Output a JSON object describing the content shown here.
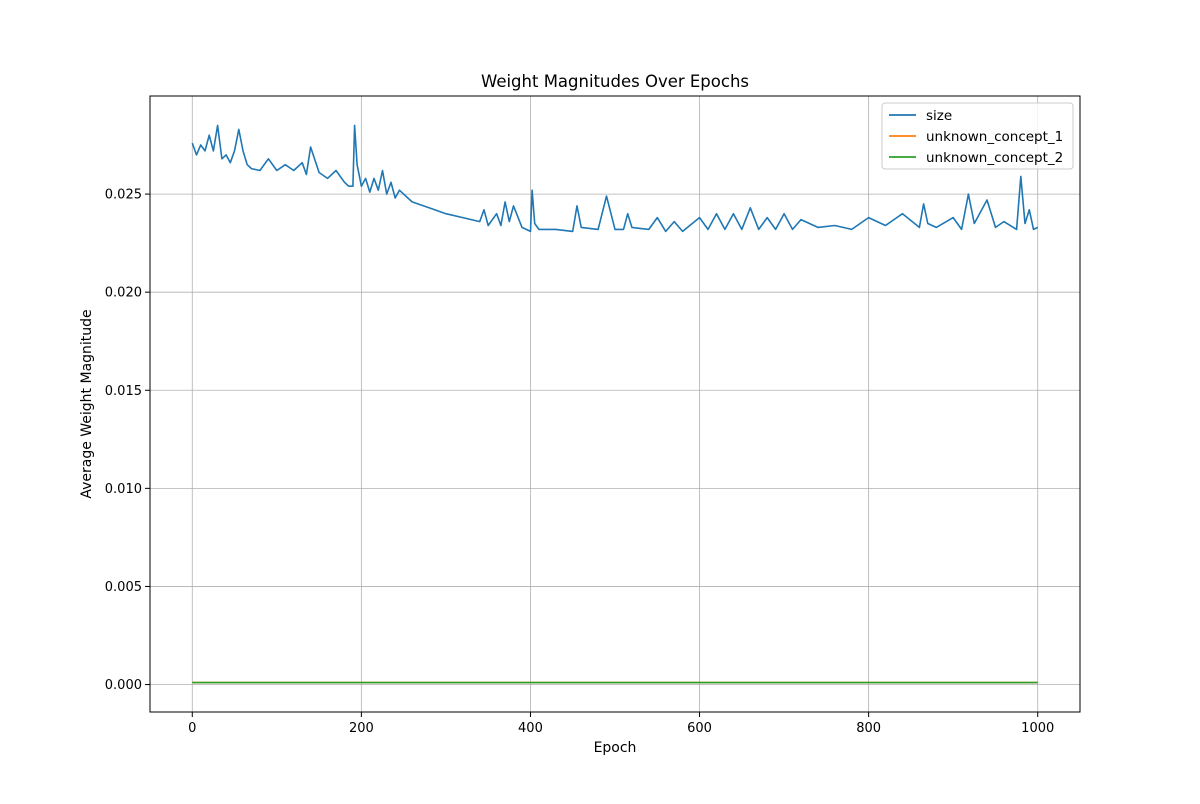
{
  "chart_data": {
    "type": "line",
    "title": "Weight Magnitudes Over Epochs",
    "xlabel": "Epoch",
    "ylabel": "Average Weight Magnitude",
    "xlim": [
      -50,
      1050
    ],
    "ylim": [
      -0.0014,
      0.03
    ],
    "x_ticks": [
      0,
      200,
      400,
      600,
      800,
      1000
    ],
    "x_tick_labels": [
      "0",
      "200",
      "400",
      "600",
      "800",
      "1000"
    ],
    "y_ticks": [
      0.0,
      0.005,
      0.01,
      0.015,
      0.02,
      0.025
    ],
    "y_tick_labels": [
      "0.000",
      "0.005",
      "0.010",
      "0.015",
      "0.020",
      "0.025"
    ],
    "grid": true,
    "legend_position": "top-right",
    "series": [
      {
        "name": "size",
        "color": "#1f77b4",
        "x": [
          0,
          5,
          10,
          15,
          20,
          25,
          30,
          35,
          40,
          45,
          50,
          55,
          60,
          65,
          70,
          80,
          90,
          100,
          110,
          120,
          130,
          135,
          140,
          150,
          160,
          170,
          180,
          185,
          190,
          192,
          195,
          200,
          205,
          210,
          215,
          220,
          225,
          230,
          235,
          240,
          245,
          260,
          280,
          300,
          320,
          340,
          345,
          350,
          360,
          365,
          370,
          375,
          380,
          390,
          400,
          402,
          405,
          410,
          430,
          450,
          455,
          460,
          480,
          490,
          500,
          510,
          515,
          520,
          540,
          550,
          560,
          570,
          580,
          600,
          610,
          620,
          630,
          640,
          650,
          660,
          670,
          680,
          690,
          700,
          710,
          720,
          740,
          760,
          780,
          800,
          820,
          840,
          860,
          865,
          870,
          880,
          900,
          910,
          918,
          925,
          940,
          950,
          960,
          975,
          980,
          985,
          990,
          995,
          1000
        ],
        "y": [
          0.0276,
          0.027,
          0.0275,
          0.0272,
          0.028,
          0.0272,
          0.0285,
          0.0268,
          0.027,
          0.0266,
          0.0272,
          0.0283,
          0.0272,
          0.0265,
          0.0263,
          0.0262,
          0.0268,
          0.0262,
          0.0265,
          0.0262,
          0.0266,
          0.026,
          0.0274,
          0.0261,
          0.0258,
          0.0262,
          0.0256,
          0.0254,
          0.0254,
          0.0285,
          0.0265,
          0.0254,
          0.0258,
          0.0251,
          0.0258,
          0.0252,
          0.0262,
          0.025,
          0.0256,
          0.0248,
          0.0252,
          0.0246,
          0.0243,
          0.024,
          0.0238,
          0.0236,
          0.0242,
          0.0234,
          0.024,
          0.0234,
          0.0246,
          0.0236,
          0.0244,
          0.0233,
          0.0231,
          0.0252,
          0.0235,
          0.0232,
          0.0232,
          0.0231,
          0.0244,
          0.0233,
          0.0232,
          0.0249,
          0.0232,
          0.0232,
          0.024,
          0.0233,
          0.0232,
          0.0238,
          0.0231,
          0.0236,
          0.0231,
          0.0238,
          0.0232,
          0.024,
          0.0232,
          0.024,
          0.0232,
          0.0243,
          0.0232,
          0.0238,
          0.0232,
          0.024,
          0.0232,
          0.0237,
          0.0233,
          0.0234,
          0.0232,
          0.0238,
          0.0234,
          0.024,
          0.0233,
          0.0245,
          0.0235,
          0.0233,
          0.0238,
          0.0232,
          0.025,
          0.0235,
          0.0247,
          0.0233,
          0.0236,
          0.0232,
          0.0259,
          0.0235,
          0.0242,
          0.0232,
          0.0233
        ]
      },
      {
        "name": "unknown_concept_1",
        "color": "#ff7f0e",
        "x": [
          0,
          1000
        ],
        "y": [
          0.0001,
          0.0001
        ]
      },
      {
        "name": "unknown_concept_2",
        "color": "#2ca02c",
        "x": [
          0,
          1000
        ],
        "y": [
          0.0001,
          0.0001
        ]
      }
    ]
  }
}
